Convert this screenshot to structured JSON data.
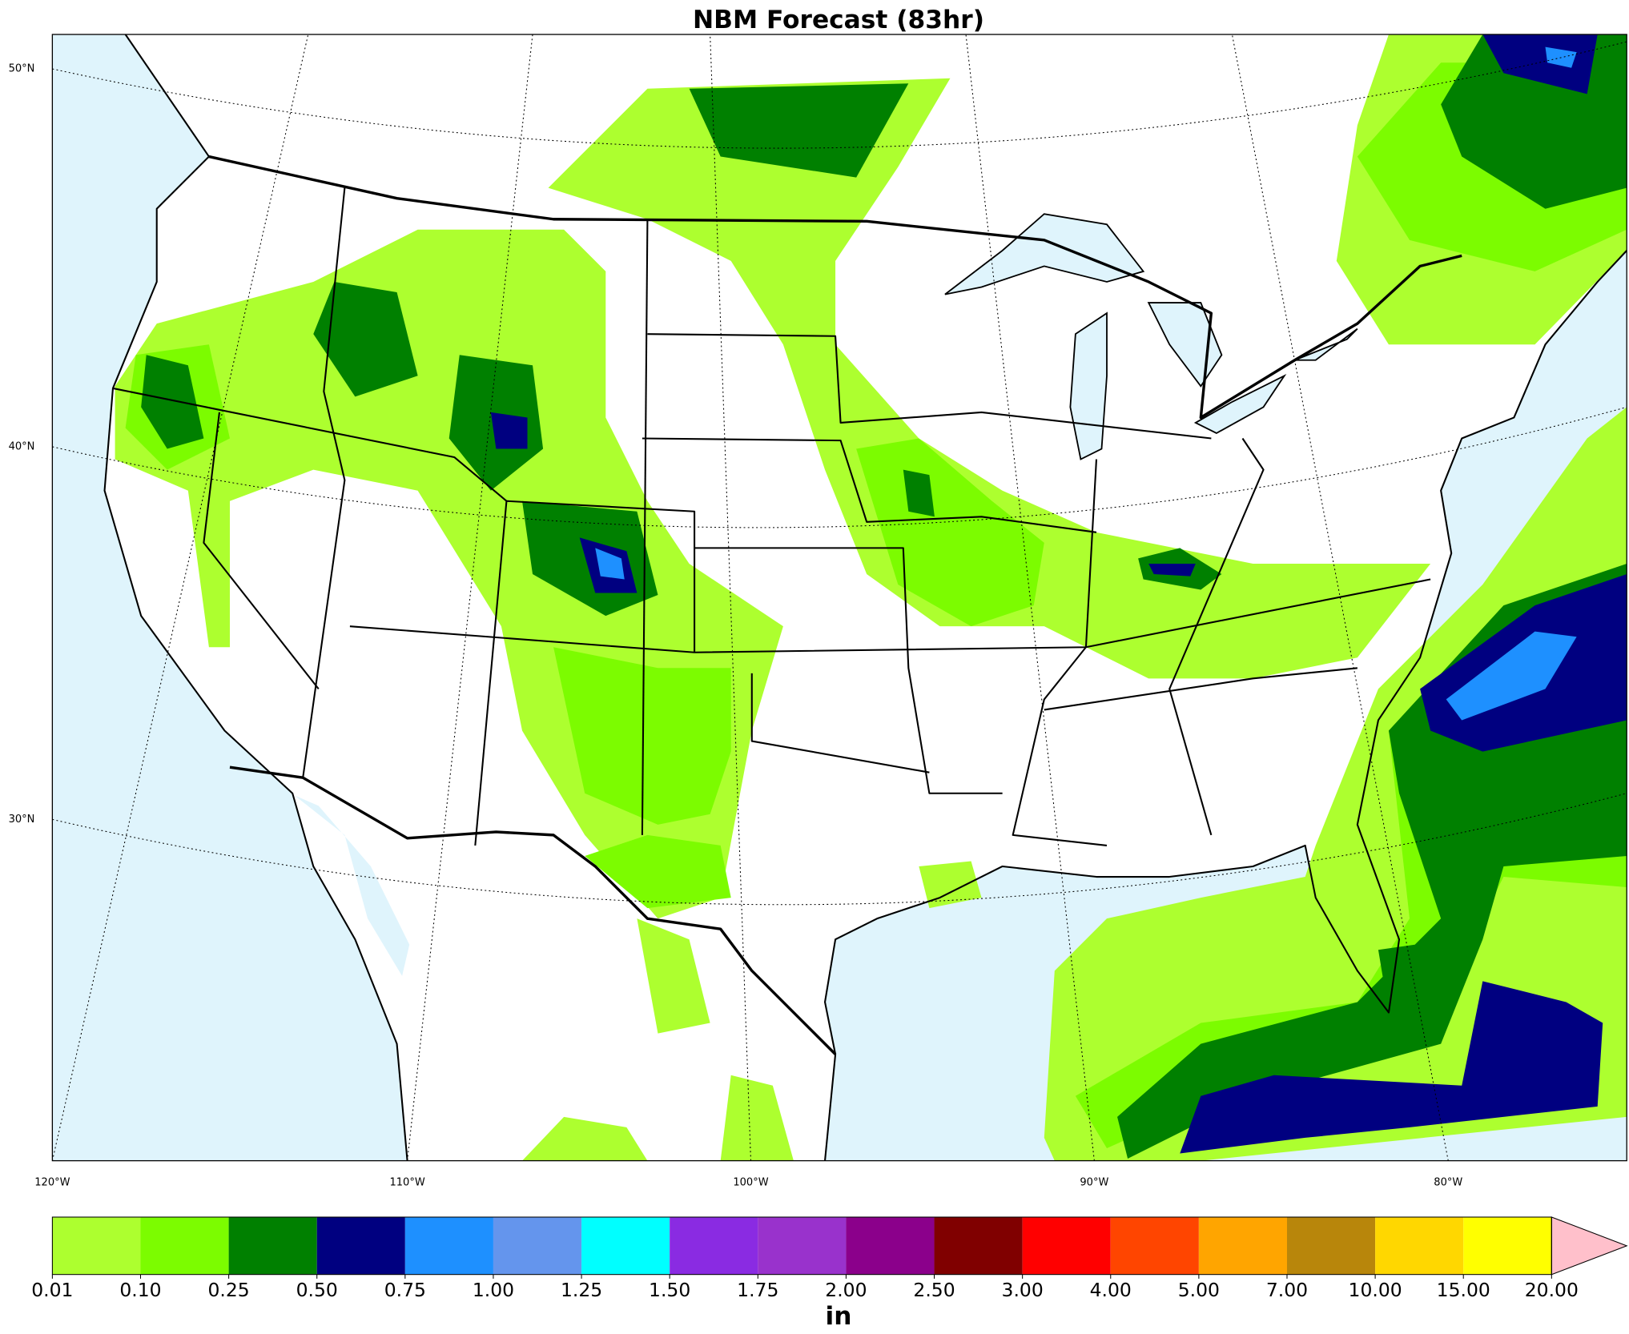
{
  "title": "NBM Forecast (83hr)",
  "map": {
    "lat_labels": [
      "50°N",
      "40°N",
      "30°N"
    ],
    "lon_labels": [
      "120°W",
      "110°W",
      "100°W",
      "90°W",
      "80°W"
    ]
  },
  "colorbar": {
    "label": "in",
    "levels": [
      0.01,
      {
        "value": 0.1,
        "label": "0.10"
      },
      0.25,
      {
        "value": 0.5,
        "label": "0.50"
      },
      0.75,
      {
        "value": 1,
        "label": "1.00"
      },
      1.25,
      {
        "value": 1.5,
        "label": "1.50"
      },
      1.75,
      {
        "value": 2,
        "label": "2.00"
      },
      {
        "value": 2.5,
        "label": "2.50"
      },
      {
        "value": 3,
        "label": "3.00"
      },
      {
        "value": 4,
        "label": "4.00"
      },
      {
        "value": 5,
        "label": "5.00"
      },
      {
        "value": 7,
        "label": "7.00"
      },
      {
        "value": 10,
        "label": "10.00"
      },
      {
        "value": 15,
        "label": "15.00"
      },
      {
        "value": 20,
        "label": "20.00"
      }
    ],
    "colors": [
      "#adff2f",
      "#7cfc00",
      "#008000",
      "#000080",
      "#1e90ff",
      "#6495ed",
      "#00ffff",
      "#8a2be2",
      "#9932cc",
      "#8b008b",
      "#800000",
      "#ff0000",
      "#ff4500",
      "#ffa500",
      "#b8860b",
      "#ffd700",
      "#ffff00"
    ],
    "extend_color": "#ffc0cb"
  }
}
